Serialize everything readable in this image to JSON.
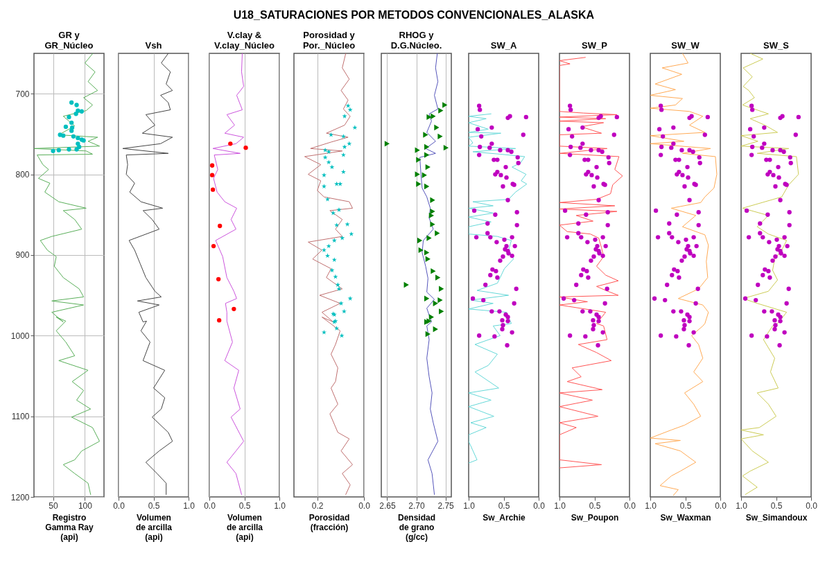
{
  "chart_data": [
    {
      "type": "other",
      "title": "U18_SATURACIONES POR METODOS CONVENCIONALES_ALASKA"
    },
    {
      "type": "line",
      "title": "GR y\nGR_Núcleo",
      "xlabel": "Registro\nGamma Ray\n(api)",
      "xlim": [
        20,
        130
      ],
      "xticks": [
        50,
        100
      ],
      "ylim": [
        1200,
        650
      ],
      "yticks": [
        700,
        800,
        900,
        1000,
        1100,
        1200
      ],
      "grid": true,
      "series": [
        {
          "type": "line",
          "color": "#5aaf5a",
          "x": [
            112.5,
            100,
            116,
            105,
            120,
            98,
            112,
            102,
            66,
            84,
            59,
            120,
            105,
            123,
            20,
            102,
            112,
            25,
            34,
            43,
            27,
            45,
            37,
            59,
            102,
            66,
            84,
            95,
            48,
            30,
            41,
            55,
            52,
            66,
            91,
            98,
            48,
            98,
            48,
            66,
            55,
            70,
            55,
            70,
            84,
            59,
            105,
            80,
            98,
            87,
            109,
            79,
            112,
            123,
            95,
            84,
            66,
            84,
            105,
            109
          ],
          "values": [
            650,
            662,
            673,
            685,
            696,
            705,
            714,
            721,
            728,
            740,
            751,
            754,
            759,
            765,
            768,
            771,
            775,
            776,
            788,
            794,
            805,
            811,
            822,
            834,
            842,
            845,
            856,
            868,
            877,
            882,
            894,
            902,
            914,
            928,
            942,
            952,
            957,
            962,
            971,
            983,
            977,
            982,
            994,
            1008,
            1025,
            1031,
            1043,
            1057,
            1068,
            1080,
            1091,
            1101,
            1114,
            1131,
            1143,
            1154,
            1160,
            1171,
            1183,
            1197
          ]
        },
        {
          "type": "scatter",
          "marker": "circle",
          "color": "#00bfbf",
          "x": [
            79,
            87,
            89,
            95,
            86,
            75,
            79,
            70,
            80,
            79,
            61,
            66,
            82,
            89,
            95,
            89,
            91,
            87,
            50,
            59,
            75,
            98
          ],
          "values": [
            711,
            714,
            721,
            722,
            725,
            729,
            736,
            741,
            742,
            746,
            751,
            752,
            753,
            755,
            757,
            762,
            766,
            769,
            771,
            770,
            769,
            758
          ]
        }
      ]
    },
    {
      "type": "line",
      "title": "Vsh",
      "xlabel": "Volumen\nde arcilla\n(api)",
      "xlim": [
        0,
        1
      ],
      "xticks": [
        {
          "value": 0,
          "label": "0.0"
        },
        0.5,
        {
          "value": 1,
          "label": "1.0"
        }
      ],
      "ylim": [
        1200,
        650
      ],
      "yticks": [
        700,
        800,
        900,
        1000,
        1100,
        1200
      ],
      "grid": "x",
      "tick_labels": "x",
      "series": [
        {
          "type": "line",
          "color": "#444444",
          "x": [
            0.71,
            0.61,
            0.74,
            0.68,
            0.77,
            0.6,
            0.71,
            0.74,
            0.39,
            0.52,
            0.34,
            0.77,
            0.6,
            0.06,
            0.71,
            0.11,
            0.13,
            0.11,
            0.23,
            0.16,
            0.32,
            0.63,
            0.35,
            0.48,
            0.58,
            0.15,
            0.23,
            0.31,
            0.39,
            0.52,
            0.61,
            0.27,
            0.58,
            0.29,
            0.35,
            0.4,
            0.32,
            0.45,
            0.35,
            0.66,
            0.5,
            0.66,
            0.61,
            0.48,
            0.71,
            0.77,
            0.58,
            0.39,
            0.55,
            0.68,
            0.68
          ],
          "values": [
            650,
            662,
            673,
            688,
            696,
            702,
            711,
            720,
            726,
            739,
            749,
            754,
            762,
            768,
            774,
            776,
            788,
            800,
            811,
            822,
            834,
            842,
            845,
            856,
            868,
            882,
            894,
            911,
            928,
            945,
            952,
            957,
            962,
            971,
            983,
            982,
            994,
            1008,
            1031,
            1043,
            1065,
            1077,
            1091,
            1101,
            1120,
            1131,
            1143,
            1157,
            1171,
            1183,
            1197
          ]
        }
      ]
    },
    {
      "type": "line",
      "title": "V.clay &\nV.clay_Núcleo",
      "xlabel": "Volumen\nde arcilla\n(api)",
      "xlim": [
        0,
        1
      ],
      "xticks": [
        {
          "value": 0,
          "label": "0.0"
        },
        0.5,
        {
          "value": 1,
          "label": "1.0"
        }
      ],
      "ylim": [
        1200,
        650
      ],
      "yticks": [
        700,
        800,
        900,
        1000,
        1100,
        1200
      ],
      "grid": "x",
      "tick_labels": "x",
      "series": [
        {
          "type": "line",
          "color": "#cc55dd",
          "x": [
            0.47,
            0.46,
            0.49,
            0.39,
            0.47,
            0.25,
            0.36,
            0.22,
            0.49,
            0.38,
            0.05,
            0.44,
            0.07,
            0.12,
            0.06,
            0.11,
            0.22,
            0.39,
            0.31,
            0.38,
            0.09,
            0.19,
            0.25,
            0.35,
            0.39,
            0.23,
            0.25,
            0.25,
            0.33,
            0.22,
            0.42,
            0.35,
            0.44,
            0.31,
            0.49,
            0.38,
            0.25,
            0.38,
            0.46
          ],
          "values": [
            650,
            673,
            691,
            702,
            720,
            726,
            739,
            749,
            754,
            762,
            768,
            774,
            776,
            794,
            805,
            822,
            834,
            842,
            856,
            868,
            882,
            902,
            928,
            945,
            954,
            960,
            971,
            982,
            1008,
            1031,
            1043,
            1065,
            1091,
            1101,
            1131,
            1143,
            1157,
            1171,
            1197
          ]
        },
        {
          "type": "scatter",
          "marker": "circle",
          "color": "#ff0000",
          "x": [
            0.3,
            0.52,
            0.04,
            0.04,
            0.05,
            0.15,
            0.06,
            0.13,
            0.35,
            0.14
          ],
          "values": [
            762,
            767,
            789,
            801,
            819,
            864,
            889,
            930,
            967,
            981
          ]
        }
      ]
    },
    {
      "type": "line",
      "title": "Porosidad y\nPor._Núcleo",
      "xlabel": "Porosidad\n(fracción)",
      "xlim": [
        0.3,
        0
      ],
      "xticks": [
        0.2,
        {
          "value": 0,
          "label": "0.0"
        }
      ],
      "ylim": [
        1200,
        650
      ],
      "yticks": [
        700,
        800,
        900,
        1000,
        1100,
        1200
      ],
      "grid": "x",
      "tick_labels": "x",
      "series": [
        {
          "type": "line",
          "color": "#c07070",
          "x": [
            0.078,
            0.093,
            0.063,
            0.098,
            0.068,
            0.088,
            0.059,
            0.083,
            0.161,
            0.068,
            0.141,
            0.229,
            0.093,
            0.254,
            0.185,
            0.239,
            0.185,
            0.2,
            0.171,
            0.063,
            0.049,
            0.146,
            0.093,
            0.122,
            0.093,
            0.239,
            0.18,
            0.22,
            0.141,
            0.161,
            0.093,
            0.19,
            0.102,
            0.18,
            0.132,
            0.18,
            0.102,
            0.122,
            0.141,
            0.112,
            0.122,
            0.141,
            0.112,
            0.146,
            0.112,
            0.063,
            0.098,
            0.049,
            0.093,
            0.059,
            0.078
          ],
          "values": [
            650,
            668,
            682,
            696,
            708,
            719,
            728,
            739,
            749,
            754,
            760,
            768,
            771,
            778,
            788,
            800,
            808,
            820,
            828,
            834,
            842,
            845,
            856,
            868,
            877,
            884,
            894,
            905,
            917,
            928,
            942,
            950,
            960,
            971,
            983,
            977,
            994,
            1011,
            1023,
            1040,
            1057,
            1065,
            1085,
            1097,
            1120,
            1128,
            1143,
            1160,
            1171,
            1185,
            1197
          ]
        },
        {
          "type": "scatter",
          "marker": "star",
          "color": "#00bfbf",
          "x": [
            0.068,
            0.059,
            0.083,
            0.039,
            0.141,
            0.088,
            0.063,
            0.083,
            0.166,
            0.151,
            0.088,
            0.166,
            0.151,
            0.137,
            0.088,
            0.171,
            0.117,
            0.102,
            0.171,
            0.156,
            0.132,
            0.107,
            0.117,
            0.071,
            0.054,
            0.093,
            0.127,
            0.151,
            0.171,
            0.156,
            0.127,
            0.137,
            0.122,
            0.112,
            0.107,
            0.059,
            0.098,
            0.085,
            0.132,
            0.127,
            0.127,
            0.122,
            0.117,
            0.171,
            0.095
          ],
          "values": [
            715,
            720,
            728,
            742,
            751,
            753,
            762,
            766,
            770,
            772,
            776,
            779,
            785,
            791,
            797,
            801,
            812,
            812,
            815,
            831,
            848,
            844,
            863,
            862,
            874,
            879,
            882,
            889,
            894,
            901,
            906,
            919,
            927,
            937,
            942,
            954,
            960,
            970,
            973,
            983,
            974,
            982,
            991,
            996,
            1000
          ]
        }
      ]
    },
    {
      "type": "line",
      "title": "RHOG y\nD.G.Núcleo.",
      "xlabel": "Densidad\nde grano\n(g/cc)",
      "xlim": [
        2.64,
        2.76
      ],
      "xticks": [
        2.65,
        {
          "value": 2.7,
          "label": "2.70"
        },
        2.75
      ],
      "ylim": [
        1200,
        650
      ],
      "yticks": [
        700,
        800,
        900,
        1000,
        1100,
        1200
      ],
      "grid": "x",
      "tick_labels": "x",
      "series": [
        {
          "type": "line",
          "color": "#5555bb",
          "x": [
            2.736,
            2.733,
            2.737,
            2.731,
            2.737,
            2.722,
            2.726,
            2.718,
            2.733,
            2.716,
            2.733,
            2.706,
            2.708,
            2.71,
            2.718,
            2.724,
            2.722,
            2.729,
            2.712,
            2.71,
            2.716,
            2.72,
            2.718,
            2.731,
            2.718,
            2.726,
            2.718,
            2.722,
            2.718,
            2.722,
            2.727,
            2.724,
            2.729,
            2.737,
            2.72,
            2.727,
            2.731
          ],
          "values": [
            650,
            668,
            685,
            702,
            719,
            725,
            734,
            748,
            759,
            768,
            774,
            779,
            800,
            817,
            828,
            842,
            854,
            868,
            882,
            897,
            914,
            929,
            946,
            955,
            966,
            983,
            988,
            1005,
            1028,
            1051,
            1071,
            1091,
            1108,
            1131,
            1154,
            1171,
            1197
          ]
        },
        {
          "type": "scatter",
          "marker": "triangle",
          "color": "#008000",
          "x": [
            2.749,
            2.742,
            2.722,
            2.729,
            2.735,
            2.741,
            2.716,
            2.65,
            2.751,
            2.718,
            2.702,
            2.718,
            2.704,
            2.72,
            2.702,
            2.714,
            2.704,
            2.718,
            2.728,
            2.728,
            2.726,
            2.728,
            2.736,
            2.706,
            2.722,
            2.708,
            2.718,
            2.72,
            2.729,
            2.737,
            2.683,
            2.743,
            2.718,
            2.741,
            2.733,
            2.743,
            2.726,
            2.718,
            2.722,
            2.733,
            2.72
          ],
          "values": [
            714,
            721,
            729,
            728,
            742,
            753,
            751,
            762,
            767,
            766,
            770,
            776,
            782,
            791,
            800,
            801,
            812,
            815,
            832,
            846,
            851,
            862,
            873,
            882,
            879,
            894,
            897,
            905,
            920,
            928,
            937,
            942,
            954,
            956,
            960,
            970,
            977,
            983,
            982,
            992,
            998
          ]
        }
      ]
    },
    {
      "type": "line",
      "title": "SW_A",
      "xlabel": "Sw_Archie",
      "xlim": [
        1,
        0
      ],
      "xticks": [
        {
          "value": 1,
          "label": "1.0"
        },
        0.5,
        {
          "value": 0,
          "label": "0.0"
        }
      ],
      "ylim": [
        1200,
        650
      ],
      "yticks": [
        700,
        800,
        900,
        1000,
        1100,
        1200
      ],
      "tick_labels": "x",
      "series": [
        {
          "type": "line",
          "color": "#66d8d8",
          "x": [
            0.68,
            1,
            0.75,
            1,
            0.72,
            1,
            0.54,
            1,
            0.94,
            1,
            0.33,
            0.94,
            0.55,
            0.2,
            0.26,
            0.38,
            0.18,
            0.25,
            0.17,
            0.33,
            0.43,
            0.94,
            0.65,
            1,
            0.65,
            1,
            0.68,
            1,
            1,
            0.59,
            0.39,
            0.43,
            0.36,
            0.49,
            0.55,
            0.59,
            0.88,
            0.43,
            0.97,
            0.65,
            1,
            0.46,
            0.39,
            0.65,
            0.55,
            0.91,
            0.59,
            0.72,
            0.91,
            0.57,
            1,
            0.68,
            1,
            0.64,
            0.97,
            0.75,
            1,
            1,
            0.88,
            1
          ],
          "values": [
            725,
            728,
            731,
            736,
            744,
            748,
            749,
            754,
            761,
            765,
            768,
            772,
            775,
            778,
            786,
            791,
            800,
            808,
            812,
            822,
            831,
            834,
            839,
            842,
            848,
            853,
            859,
            865,
            874,
            877,
            882,
            894,
            905,
            917,
            928,
            935,
            944,
            950,
            956,
            960,
            967,
            971,
            985,
            988,
            1000,
            1011,
            1023,
            1037,
            1045,
            1065,
            1071,
            1080,
            1088,
            1100,
            1108,
            1114,
            1123,
            1131,
            1154,
            1158
          ]
        },
        {
          "type": "scatter",
          "marker": "circle",
          "color": "#bf00bf",
          "x": [
            0.85,
            0.84,
            0.44,
            0.41,
            0.18,
            0.67,
            0.87,
            0.82,
            0.22,
            0.67,
            0.84,
            0.7,
            0.55,
            0.44,
            0.39,
            0.85,
            0.3,
            0.29,
            0.64,
            0.59,
            0.47,
            0.59,
            0.62,
            0.54,
            0.46,
            0.37,
            0.35,
            0.51,
            0.44,
            0.92,
            0.62,
            0.31,
            0.73,
            0.31,
            0.89,
            0.73,
            0.69,
            0.6,
            0.49,
            0.38,
            0.34,
            0.46,
            0.48,
            0.44,
            0.43,
            0.38,
            0.51,
            0.55,
            0.66,
            0.61,
            0.69,
            0.59,
            0.76,
            0.32,
            0.94,
            0.79,
            0.35,
            0.67,
            0.56,
            0.47,
            0.44,
            0.52,
            0.44,
            0.51,
            0.52,
            0.38,
            0.85,
            0.63,
            0.45
          ],
          "values": [
            715,
            720,
            730,
            728,
            729,
            742,
            744,
            753,
            751,
            762,
            766,
            767,
            770,
            770,
            772,
            776,
            779,
            786,
            782,
            782,
            791,
            797,
            800,
            801,
            804,
            812,
            813,
            815,
            832,
            845,
            850,
            847,
            861,
            863,
            878,
            873,
            878,
            884,
            881,
            878,
            889,
            889,
            893,
            895,
            898,
            901,
            902,
            907,
            918,
            920,
            925,
            928,
            937,
            942,
            954,
            956,
            960,
            970,
            970,
            974,
            977,
            981,
            982,
            987,
            992,
            996,
            1000,
            1001,
            1012
          ]
        }
      ]
    },
    {
      "type": "line",
      "title": "SW_P",
      "xlabel": "Sw_Poupon",
      "xlim": [
        1,
        0
      ],
      "xticks": [
        {
          "value": 1,
          "label": "1.0"
        },
        0.5,
        {
          "value": 0,
          "label": "0.0"
        }
      ],
      "ylim": [
        1200,
        650
      ],
      "yticks": [
        700,
        800,
        900,
        1000,
        1100,
        1200
      ],
      "tick_labels": "x",
      "series": [
        {
          "type": "line",
          "color": "#ff5555",
          "x": [
            0.63,
            1,
            0.85,
            1,
            1,
            0.66,
            0.18,
            1,
            0.34,
            1,
            0.37,
            0.69,
            0.4,
            1,
            1,
            0.32,
            1,
            0.15,
            0.21,
            0.1,
            0.24,
            0.27,
            0.47,
            1,
            0.21,
            1,
            0.18,
            0.76,
            0.52,
            1,
            0.89,
            0.56,
            0.44,
            0.4,
            0.37,
            0.47,
            0.34,
            0.16,
            0.47,
            0.31,
            0.16,
            1,
            0.6,
            1,
            0.34,
            0.47,
            0.37,
            0.32,
            0.73,
            0.47,
            0.26,
            0.82,
            0.69,
            0.89,
            0.39,
            1,
            0.53,
            1,
            0.45,
            1,
            0.76,
            1,
            1,
            0.4,
            1
          ],
          "values": [
            655,
            659,
            663,
            665,
            722,
            724,
            726,
            729,
            731,
            734,
            736,
            741,
            749,
            751,
            765,
            768,
            774,
            778,
            794,
            802,
            813,
            824,
            831,
            835,
            839,
            843,
            846,
            851,
            858,
            863,
            871,
            874,
            879,
            891,
            902,
            914,
            925,
            932,
            939,
            945,
            950,
            952,
            958,
            962,
            971,
            985,
            988,
            1005,
            1011,
            1021,
            1031,
            1040,
            1051,
            1057,
            1067,
            1071,
            1080,
            1088,
            1100,
            1108,
            1114,
            1123,
            1154,
            1160,
            1164
          ]
        },
        {
          "type": "scatter",
          "marker": "circle",
          "color": "#bf00bf",
          "x": [
            0.85,
            0.84,
            0.44,
            0.41,
            0.18,
            0.67,
            0.87,
            0.82,
            0.22,
            0.67,
            0.84,
            0.7,
            0.55,
            0.44,
            0.39,
            0.85,
            0.3,
            0.29,
            0.64,
            0.59,
            0.47,
            0.59,
            0.62,
            0.54,
            0.46,
            0.37,
            0.35,
            0.51,
            0.44,
            0.92,
            0.62,
            0.31,
            0.73,
            0.31,
            0.89,
            0.73,
            0.69,
            0.6,
            0.49,
            0.38,
            0.34,
            0.46,
            0.48,
            0.44,
            0.43,
            0.38,
            0.51,
            0.55,
            0.66,
            0.61,
            0.69,
            0.59,
            0.76,
            0.32,
            0.94,
            0.79,
            0.35,
            0.67,
            0.56,
            0.47,
            0.44,
            0.52,
            0.44,
            0.51,
            0.52,
            0.38,
            0.85,
            0.63,
            0.45
          ],
          "values": [
            715,
            720,
            730,
            728,
            729,
            742,
            744,
            753,
            751,
            762,
            766,
            767,
            770,
            770,
            772,
            776,
            779,
            786,
            782,
            782,
            791,
            797,
            800,
            801,
            804,
            812,
            813,
            815,
            832,
            845,
            850,
            847,
            861,
            863,
            878,
            873,
            878,
            884,
            881,
            878,
            889,
            889,
            893,
            895,
            898,
            901,
            902,
            907,
            918,
            920,
            925,
            928,
            937,
            942,
            954,
            956,
            960,
            970,
            970,
            974,
            977,
            981,
            982,
            987,
            992,
            996,
            1000,
            1001,
            1012
          ]
        }
      ]
    },
    {
      "type": "line",
      "title": "SW_W",
      "xlabel": "Sw_Waxman",
      "xlim": [
        1,
        0
      ],
      "xticks": [
        {
          "value": 1,
          "label": "1.0"
        },
        0.5,
        {
          "value": 0,
          "label": "0.0"
        }
      ],
      "ylim": [
        1200,
        650
      ],
      "yticks": [
        700,
        800,
        900,
        1000,
        1100,
        1200
      ],
      "tick_labels": "x",
      "series": [
        {
          "type": "line",
          "color": "#ffaa55",
          "x": [
            0.54,
            0.46,
            0.83,
            0.55,
            0.93,
            0.64,
            1,
            0.54,
            0.64,
            1,
            0.44,
            0.25,
            0.44,
            0.22,
            1,
            0.52,
            1,
            0.14,
            0.54,
            0.07,
            0.05,
            0.09,
            0.22,
            0.28,
            0.7,
            0.35,
            0.54,
            0.22,
            0.17,
            0.2,
            0.18,
            0.31,
            0.6,
            0.25,
            0.17,
            0.22,
            0.25,
            0.41,
            0.31,
            0.25,
            0.38,
            0.25,
            0.51,
            0.38,
            0.28,
            0.51,
            0.7,
            1,
            0.57,
            0.93,
            0.57,
            0.35,
            0.57,
            0.7,
            0.86,
            0.6,
            0.67
          ],
          "values": [
            650,
            662,
            668,
            676,
            688,
            695,
            702,
            706,
            714,
            718,
            722,
            728,
            739,
            748,
            752,
            759,
            762,
            768,
            774,
            778,
            800,
            817,
            828,
            835,
            842,
            851,
            865,
            875,
            888,
            908,
            928,
            942,
            954,
            962,
            971,
            985,
            988,
            1000,
            1011,
            1028,
            1045,
            1057,
            1071,
            1085,
            1100,
            1111,
            1117,
            1127,
            1130,
            1134,
            1143,
            1157,
            1168,
            1174,
            1186,
            1191,
            1198
          ]
        },
        {
          "type": "scatter",
          "marker": "circle",
          "color": "#bf00bf",
          "x": [
            0.85,
            0.84,
            0.44,
            0.41,
            0.18,
            0.67,
            0.87,
            0.82,
            0.22,
            0.67,
            0.84,
            0.7,
            0.55,
            0.44,
            0.39,
            0.85,
            0.3,
            0.29,
            0.64,
            0.59,
            0.47,
            0.59,
            0.62,
            0.54,
            0.46,
            0.37,
            0.35,
            0.51,
            0.44,
            0.92,
            0.62,
            0.31,
            0.73,
            0.31,
            0.89,
            0.73,
            0.69,
            0.6,
            0.49,
            0.38,
            0.34,
            0.46,
            0.48,
            0.44,
            0.43,
            0.38,
            0.51,
            0.55,
            0.66,
            0.61,
            0.69,
            0.59,
            0.76,
            0.32,
            0.94,
            0.79,
            0.35,
            0.67,
            0.56,
            0.47,
            0.44,
            0.52,
            0.44,
            0.51,
            0.52,
            0.38,
            0.85,
            0.63,
            0.45
          ],
          "values": [
            715,
            720,
            730,
            728,
            729,
            742,
            744,
            753,
            751,
            762,
            766,
            767,
            770,
            770,
            772,
            776,
            779,
            786,
            782,
            782,
            791,
            797,
            800,
            801,
            804,
            812,
            813,
            815,
            832,
            845,
            850,
            847,
            861,
            863,
            878,
            873,
            878,
            884,
            881,
            878,
            889,
            889,
            893,
            895,
            898,
            901,
            902,
            907,
            918,
            920,
            925,
            928,
            937,
            942,
            954,
            956,
            960,
            970,
            970,
            974,
            977,
            981,
            982,
            987,
            992,
            996,
            1000,
            1001,
            1012
          ]
        }
      ]
    },
    {
      "type": "line",
      "title": "SW_S",
      "xlabel": "Sw_Simandoux",
      "xlim": [
        1,
        0
      ],
      "xticks": [
        {
          "value": 1,
          "label": "1.0"
        },
        0.5,
        {
          "value": 0,
          "label": "0.0"
        }
      ],
      "ylim": [
        1200,
        650
      ],
      "yticks": [
        700,
        800,
        900,
        1000,
        1100,
        1200
      ],
      "tick_labels": "x",
      "series": [
        {
          "type": "line",
          "color": "#cccc55",
          "x": [
            0.87,
            0.69,
            0.97,
            0.84,
            0.97,
            0.89,
            0.81,
            0.98,
            0.61,
            0.87,
            0.66,
            0.48,
            1,
            0.76,
            1,
            0.32,
            0.77,
            0.21,
            0.18,
            0.32,
            0.42,
            0.98,
            0.61,
            0.77,
            0.61,
            0.35,
            0.42,
            0.52,
            0.55,
            0.48,
            0.61,
            0.97,
            0.77,
            0.35,
            0.48,
            0.55,
            0.68,
            0.52,
            0.58,
            0.47,
            0.77,
            0.61,
            0.5,
            0.74,
            1,
            0.68,
            1,
            0.84,
            0.61,
            0.87,
            0.98,
            0.77,
            0.94
          ],
          "values": [
            650,
            657,
            668,
            679,
            691,
            696,
            705,
            714,
            725,
            731,
            739,
            748,
            752,
            759,
            765,
            768,
            774,
            778,
            800,
            813,
            828,
            842,
            851,
            865,
            874,
            882,
            894,
            905,
            919,
            931,
            945,
            954,
            960,
            971,
            985,
            988,
            1005,
            1028,
            1045,
            1065,
            1071,
            1085,
            1100,
            1114,
            1117,
            1123,
            1128,
            1143,
            1157,
            1168,
            1174,
            1188,
            1197
          ]
        },
        {
          "type": "scatter",
          "marker": "circle",
          "color": "#bf00bf",
          "x": [
            0.85,
            0.84,
            0.44,
            0.41,
            0.18,
            0.67,
            0.87,
            0.82,
            0.22,
            0.67,
            0.84,
            0.7,
            0.55,
            0.44,
            0.39,
            0.85,
            0.3,
            0.29,
            0.64,
            0.59,
            0.47,
            0.59,
            0.62,
            0.54,
            0.46,
            0.37,
            0.35,
            0.51,
            0.44,
            0.92,
            0.62,
            0.31,
            0.73,
            0.31,
            0.89,
            0.73,
            0.69,
            0.6,
            0.49,
            0.38,
            0.34,
            0.46,
            0.48,
            0.44,
            0.43,
            0.38,
            0.51,
            0.55,
            0.66,
            0.61,
            0.69,
            0.59,
            0.76,
            0.32,
            0.94,
            0.79,
            0.35,
            0.67,
            0.56,
            0.47,
            0.44,
            0.52,
            0.44,
            0.51,
            0.52,
            0.38,
            0.85,
            0.63,
            0.45
          ],
          "values": [
            715,
            720,
            730,
            728,
            729,
            742,
            744,
            753,
            751,
            762,
            766,
            767,
            770,
            770,
            772,
            776,
            779,
            786,
            782,
            782,
            791,
            797,
            800,
            801,
            804,
            812,
            813,
            815,
            832,
            845,
            850,
            847,
            861,
            863,
            878,
            873,
            878,
            884,
            881,
            878,
            889,
            889,
            893,
            895,
            898,
            901,
            902,
            907,
            918,
            920,
            925,
            928,
            937,
            942,
            954,
            956,
            960,
            970,
            970,
            974,
            977,
            981,
            982,
            987,
            992,
            996,
            1000,
            1001,
            1012
          ]
        }
      ]
    }
  ]
}
